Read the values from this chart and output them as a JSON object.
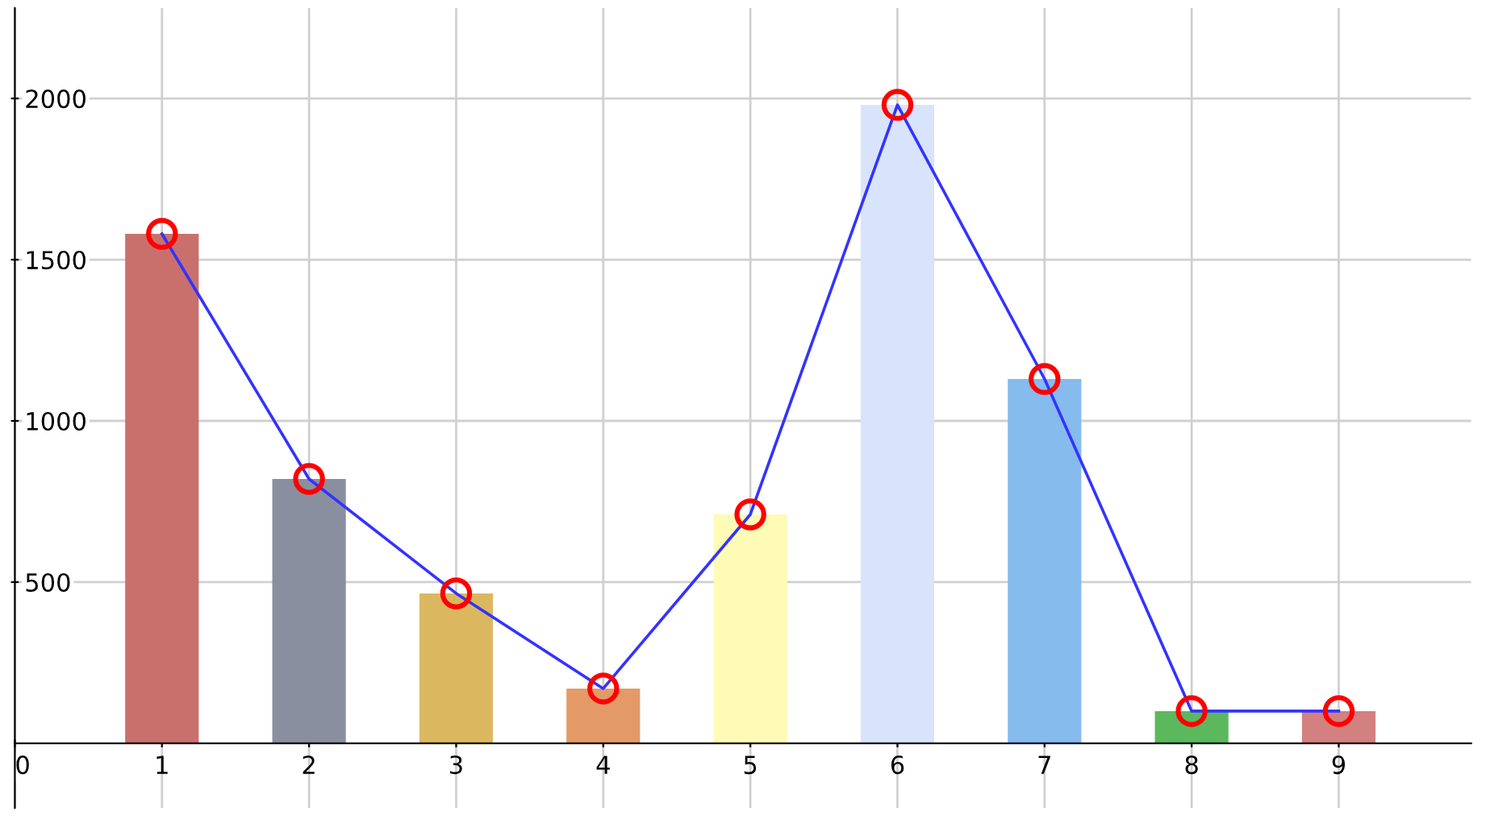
{
  "chart_data": {
    "type": "bar",
    "x": [
      1,
      2,
      3,
      4,
      5,
      6,
      7,
      8,
      9
    ],
    "series": [
      {
        "colors": [
          "#c9706d",
          "#8a8fa0",
          "#dbb860",
          "#e39a67",
          "#fdfbb5",
          "#d8e4fb",
          "#86bbee",
          "#5cb85c",
          "#d28080"
        ],
        "values": [
          1580,
          820,
          465,
          170,
          710,
          1980,
          1130,
          100,
          100
        ]
      },
      {
        "type": "line",
        "color": "#3333ff",
        "marker": "circle",
        "values": [
          1580,
          820,
          465,
          170,
          710,
          1980,
          1130,
          100,
          100
        ]
      }
    ],
    "xlim": [
      0,
      9.9
    ],
    "ylim": [
      -200,
      2280
    ],
    "xticks": [
      0,
      1,
      2,
      3,
      4,
      5,
      6,
      7,
      8,
      9
    ],
    "yticks": [
      500,
      1000,
      1500,
      2000
    ],
    "grid": true
  }
}
